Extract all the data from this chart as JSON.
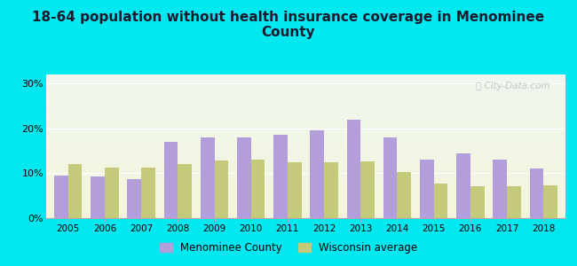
{
  "title": "18-64 population without health insurance coverage in Menominee\nCounty",
  "years": [
    2005,
    2006,
    2007,
    2008,
    2009,
    2010,
    2011,
    2012,
    2013,
    2014,
    2015,
    2016,
    2017,
    2018
  ],
  "menominee": [
    9.5,
    9.3,
    8.7,
    17.0,
    18.0,
    18.0,
    18.5,
    19.5,
    22.0,
    18.0,
    13.0,
    14.5,
    13.0,
    11.0
  ],
  "wisconsin": [
    12.0,
    11.3,
    11.2,
    12.0,
    12.8,
    13.0,
    12.5,
    12.5,
    12.7,
    10.3,
    7.8,
    7.2,
    7.2,
    7.4
  ],
  "menominee_color": "#b39ddb",
  "wisconsin_color": "#c5c97a",
  "background_outer": "#00e8f0",
  "background_inner_top": "#eef7ee",
  "background_inner_bottom": "#f5f5dc",
  "ylim": [
    0,
    32
  ],
  "yticks": [
    0,
    10,
    20,
    30
  ],
  "ytick_labels": [
    "0%",
    "10%",
    "20%",
    "30%"
  ],
  "legend_menominee": "Menominee County",
  "legend_wisconsin": "Wisconsin average",
  "bar_width": 0.38,
  "watermark": "ⓘ City-Data.com"
}
